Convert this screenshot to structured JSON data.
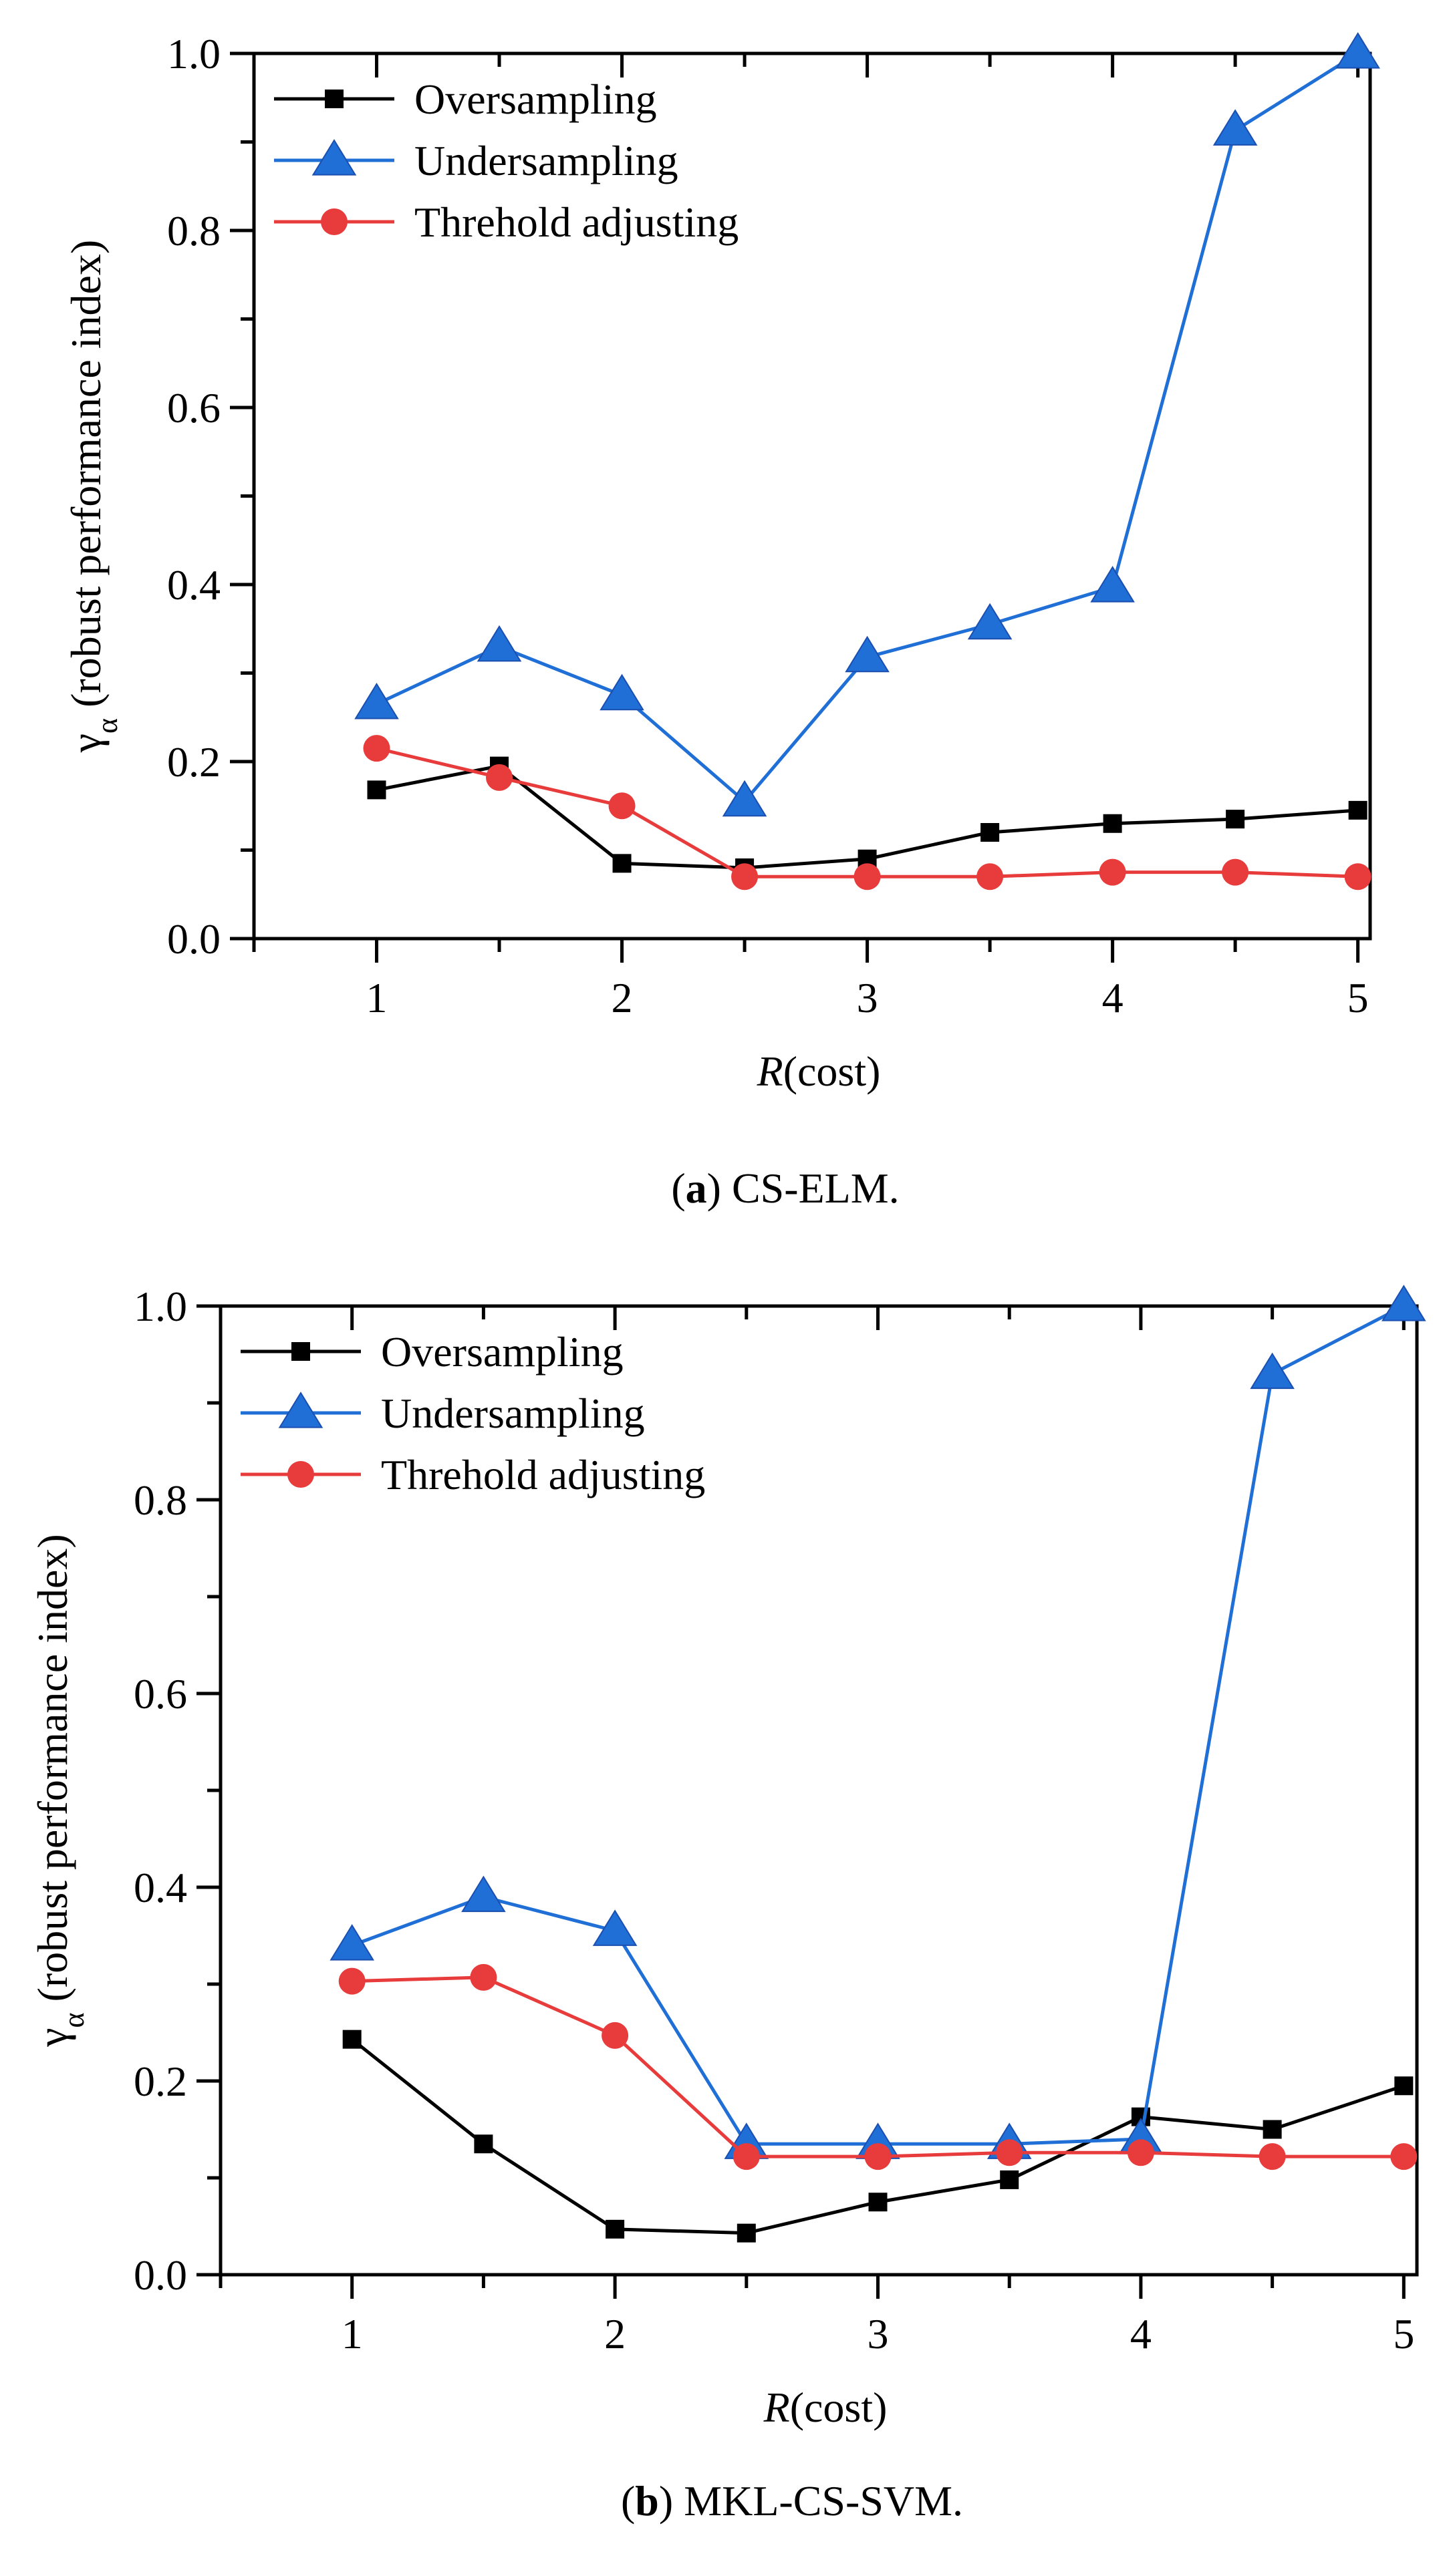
{
  "chart_data": [
    {
      "type": "line",
      "caption": {
        "letter": "a",
        "open": "(",
        "close": ")",
        "rest": " CS-ELM."
      },
      "xlabel": {
        "var": "R",
        "rest": "(cost)"
      },
      "ylabel": {
        "sym": "γ",
        "sub": "α",
        "rest": " (robust performance index)"
      },
      "xlim": [
        0.5,
        5.05
      ],
      "ylim": [
        0,
        1.0
      ],
      "xticks": [
        "1",
        "2",
        "3",
        "4",
        "5"
      ],
      "yticks": [
        "0.0",
        "0.2",
        "0.4",
        "0.6",
        "0.8",
        "1.0"
      ],
      "legend_position": "top-left",
      "x": [
        1,
        1.5,
        2,
        2.5,
        3,
        3.5,
        4,
        4.5,
        5
      ],
      "series": [
        {
          "name": "Oversampling",
          "color": "#000000",
          "marker": "square",
          "values": [
            0.168,
            0.195,
            0.085,
            0.08,
            0.09,
            0.12,
            0.13,
            0.135,
            0.145
          ]
        },
        {
          "name": "Undersampling",
          "color": "#1f6fd6",
          "marker": "triangle",
          "values": [
            0.265,
            0.33,
            0.275,
            0.155,
            0.318,
            0.355,
            0.397,
            0.913,
            1.0
          ]
        },
        {
          "name": "Threhold adjusting",
          "color": "#e83b3b",
          "marker": "circle",
          "values": [
            0.215,
            0.182,
            0.15,
            0.07,
            0.07,
            0.07,
            0.075,
            0.075,
            0.07
          ]
        }
      ]
    },
    {
      "type": "line",
      "caption": {
        "letter": "b",
        "open": "(",
        "close": ")",
        "rest": " MKL-CS-SVM."
      },
      "xlabel": {
        "var": "R",
        "rest": "(cost)"
      },
      "ylabel": {
        "sym": "γ",
        "sub": "α",
        "rest": " (robust performance index)"
      },
      "xlim": [
        0.5,
        5.05
      ],
      "ylim": [
        0,
        1.0
      ],
      "xticks": [
        "1",
        "2",
        "3",
        "4",
        "5"
      ],
      "yticks": [
        "0.0",
        "0.2",
        "0.4",
        "0.6",
        "0.8",
        "1.0"
      ],
      "legend_position": "top-left",
      "x": [
        1,
        1.5,
        2,
        2.5,
        3,
        3.5,
        4,
        4.5,
        5
      ],
      "series": [
        {
          "name": "Oversampling",
          "color": "#000000",
          "marker": "square",
          "values": [
            0.243,
            0.135,
            0.047,
            0.043,
            0.075,
            0.098,
            0.163,
            0.15,
            0.195
          ]
        },
        {
          "name": "Undersampling",
          "color": "#1f6fd6",
          "marker": "triangle",
          "values": [
            0.34,
            0.39,
            0.355,
            0.135,
            0.135,
            0.135,
            0.14,
            0.93,
            1.0
          ]
        },
        {
          "name": "Threhold adjusting",
          "color": "#e83b3b",
          "marker": "circle",
          "values": [
            0.303,
            0.307,
            0.247,
            0.122,
            0.122,
            0.126,
            0.126,
            0.122,
            0.122
          ]
        }
      ]
    }
  ]
}
